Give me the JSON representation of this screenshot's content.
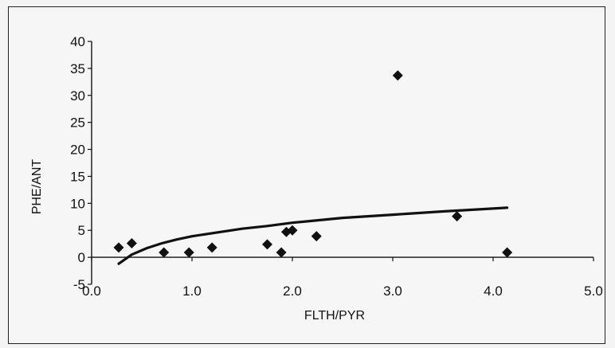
{
  "chart_data": {
    "type": "scatter",
    "title": "",
    "xlabel": "FLTH/PYR",
    "ylabel": "PHE/ANT",
    "xlim": [
      0,
      5
    ],
    "ylim": [
      -5,
      40
    ],
    "x_ticks": [
      0,
      1,
      2,
      3,
      4,
      5
    ],
    "x_tick_labels": [
      "0.0",
      "1.0",
      "2.0",
      "3.0",
      "4.0",
      "5.0"
    ],
    "y_ticks": [
      -5,
      0,
      5,
      10,
      15,
      20,
      25,
      30,
      35,
      40
    ],
    "y_tick_labels": [
      "-5",
      "0",
      "5",
      "10",
      "15",
      "20",
      "25",
      "30",
      "35",
      "40"
    ],
    "grid": false,
    "legend": "none",
    "series": [
      {
        "kind": "points",
        "marker": "diamond",
        "color": "#111111",
        "points": [
          {
            "x": 0.27,
            "y": 1.8
          },
          {
            "x": 0.4,
            "y": 2.6
          },
          {
            "x": 0.72,
            "y": 0.9
          },
          {
            "x": 0.97,
            "y": 0.9
          },
          {
            "x": 1.2,
            "y": 1.8
          },
          {
            "x": 1.75,
            "y": 2.4
          },
          {
            "x": 1.89,
            "y": 0.9
          },
          {
            "x": 1.94,
            "y": 4.7
          },
          {
            "x": 2.0,
            "y": 5.0
          },
          {
            "x": 2.24,
            "y": 3.9
          },
          {
            "x": 3.05,
            "y": 33.7
          },
          {
            "x": 3.64,
            "y": 7.6
          },
          {
            "x": 4.14,
            "y": 0.9
          }
        ]
      },
      {
        "kind": "trendline",
        "color": "#111111",
        "points": [
          {
            "x": 0.27,
            "y": -1.2
          },
          {
            "x": 0.4,
            "y": 0.5
          },
          {
            "x": 0.55,
            "y": 1.7
          },
          {
            "x": 0.7,
            "y": 2.6
          },
          {
            "x": 0.85,
            "y": 3.3
          },
          {
            "x": 1.0,
            "y": 3.9
          },
          {
            "x": 1.25,
            "y": 4.6
          },
          {
            "x": 1.5,
            "y": 5.3
          },
          {
            "x": 1.75,
            "y": 5.8
          },
          {
            "x": 2.0,
            "y": 6.4
          },
          {
            "x": 2.5,
            "y": 7.3
          },
          {
            "x": 3.0,
            "y": 7.9
          },
          {
            "x": 3.5,
            "y": 8.5
          },
          {
            "x": 4.14,
            "y": 9.2
          }
        ]
      }
    ]
  }
}
